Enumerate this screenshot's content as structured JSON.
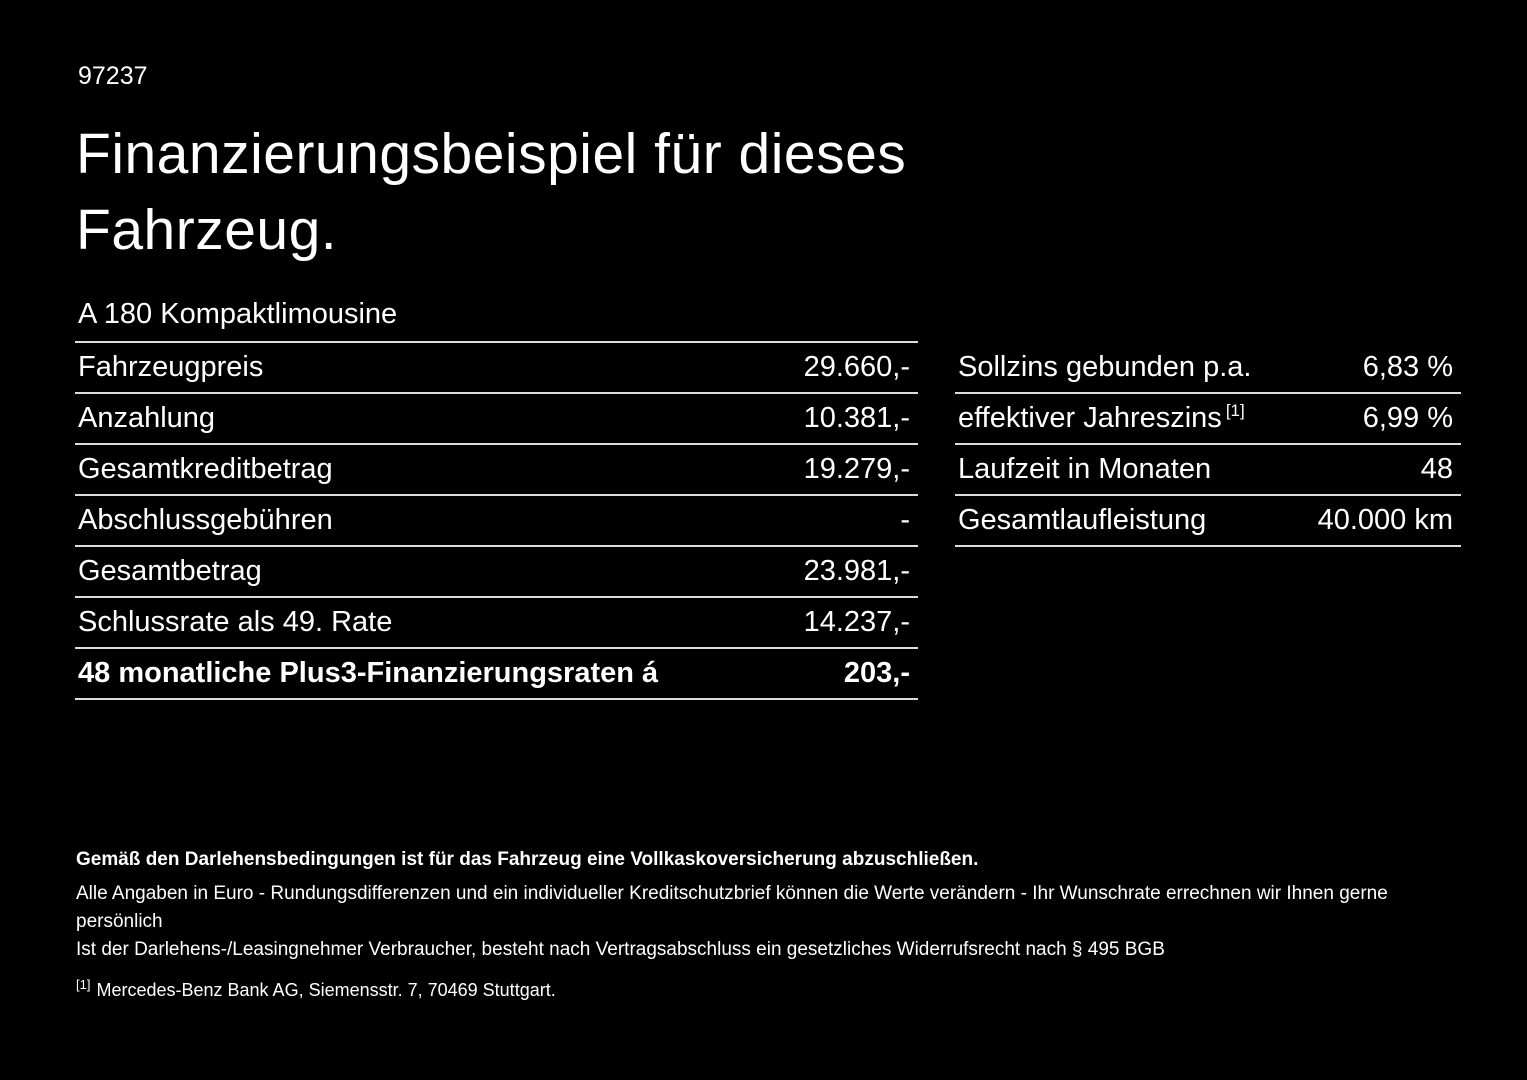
{
  "page": {
    "id_number": "97237",
    "title_line1": "Finanzierungsbeispiel für dieses",
    "title_line2": "Fahrzeug.",
    "vehicle": "A 180 Kompaktlimousine"
  },
  "left_table": {
    "rows": [
      {
        "label": "Fahrzeugpreis",
        "value": "29.660,-"
      },
      {
        "label": "Anzahlung",
        "value": "10.381,-"
      },
      {
        "label": "Gesamtkreditbetrag",
        "value": "19.279,-"
      },
      {
        "label": "Abschlussgebühren",
        "value": "-"
      },
      {
        "label": "Gesamtbetrag",
        "value": "23.981,-"
      },
      {
        "label": "Schlussrate als 49. Rate",
        "value": "14.237,-"
      },
      {
        "label": "48 monatliche Plus3-Finanzierungsraten á",
        "value": "203,-"
      }
    ]
  },
  "right_table": {
    "rows": [
      {
        "label": "Sollzins gebunden p.a.",
        "value": "6,83 %"
      },
      {
        "label": "effektiver Jahreszins",
        "sup": "[1]",
        "value": "6,99 %"
      },
      {
        "label": "Laufzeit in Monaten",
        "value": "48"
      },
      {
        "label": "Gesamtlaufleistung",
        "value": "40.000 km"
      }
    ]
  },
  "footnotes": {
    "bold_line": "Gemäß den Darlehensbedingungen ist für das Fahrzeug eine Vollkaskoversicherung abzuschließen.",
    "line1": "Alle Angaben in Euro - Rundungsdifferenzen und ein individueller Kreditschutzbrief können die Werte verändern - Ihr Wunschrate errechnen wir Ihnen gerne persönlich",
    "line2": "Ist der Darlehens-/Leasingnehmer Verbraucher, besteht nach Vertragsabschluss ein gesetzliches Widerrufsrecht nach § 495 BGB",
    "ref_marker": "[1]",
    "ref_text": "Mercedes-Benz Bank AG, Siemensstr. 7, 70469 Stuttgart."
  },
  "colors": {
    "background": "#000000",
    "text": "#ffffff",
    "divider": "#dcdcdc"
  }
}
